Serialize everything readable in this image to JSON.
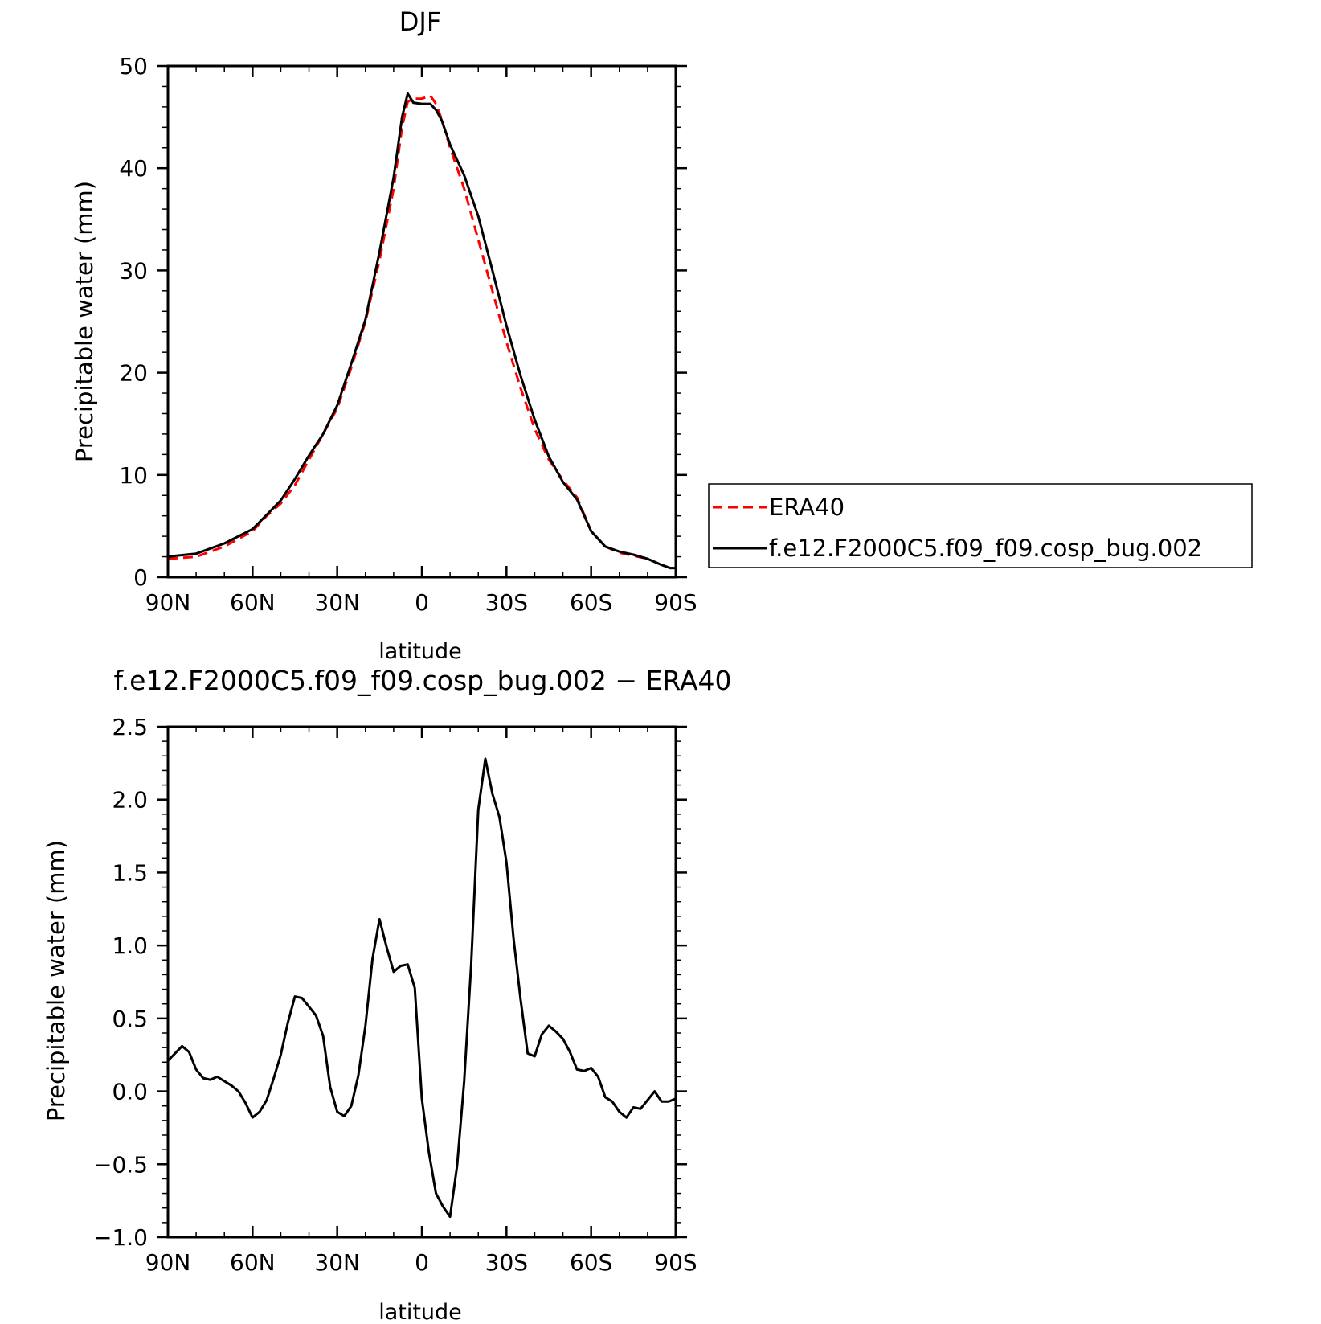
{
  "colors": {
    "era40": "#ff0000",
    "model": "#000000",
    "axis": "#000000",
    "background": "#ffffff"
  },
  "chart_data": [
    {
      "type": "line",
      "title": "DJF",
      "xlabel": "latitude",
      "ylabel": "Precipitable water (mm)",
      "xlim": [
        90,
        -90
      ],
      "ylim": [
        0,
        50
      ],
      "x_ticks": [
        {
          "value": 90,
          "label": "90N"
        },
        {
          "value": 60,
          "label": "60N"
        },
        {
          "value": 30,
          "label": "30N"
        },
        {
          "value": 0,
          "label": "0"
        },
        {
          "value": -30,
          "label": "30S"
        },
        {
          "value": -60,
          "label": "60S"
        },
        {
          "value": -90,
          "label": "90S"
        }
      ],
      "y_ticks": [
        {
          "value": 0,
          "label": "0"
        },
        {
          "value": 10,
          "label": "10"
        },
        {
          "value": 20,
          "label": "20"
        },
        {
          "value": 30,
          "label": "30"
        },
        {
          "value": 40,
          "label": "40"
        },
        {
          "value": 50,
          "label": "50"
        }
      ],
      "grid": false,
      "legend_position": "right",
      "series": [
        {
          "name": "ERA40",
          "color": "#ff0000",
          "dash": "dashed",
          "x": [
            90,
            80,
            70,
            60,
            55,
            50,
            45,
            40,
            35,
            30,
            25,
            20,
            15,
            10,
            7,
            5,
            3,
            0,
            -3,
            -5,
            -7,
            -10,
            -15,
            -20,
            -25,
            -30,
            -35,
            -40,
            -45,
            -50,
            -55,
            -60,
            -65,
            -70,
            -75,
            -80,
            -85,
            -88,
            -90
          ],
          "y": [
            1.8,
            2.0,
            3.0,
            4.5,
            6.0,
            7.2,
            9.0,
            11.5,
            14.0,
            16.5,
            20.5,
            25.0,
            31.0,
            38.0,
            44.0,
            46.5,
            46.8,
            46.8,
            47.1,
            46.3,
            44.8,
            42.0,
            38.0,
            33.0,
            28.0,
            23.0,
            18.5,
            14.5,
            11.5,
            9.5,
            7.8,
            4.5,
            3.0,
            2.4,
            2.1,
            1.8,
            1.2,
            0.9,
            0.9
          ]
        },
        {
          "name": "f.e12.F2000C5.f09_f09.cosp_bug.002",
          "color": "#000000",
          "dash": "solid",
          "x": [
            90,
            87,
            80,
            70,
            60,
            55,
            50,
            45,
            40,
            35,
            30,
            25,
            20,
            15,
            10,
            7,
            5,
            3,
            0,
            -3,
            -5,
            -7,
            -10,
            -15,
            -20,
            -25,
            -30,
            -35,
            -40,
            -45,
            -50,
            -55,
            -60,
            -65,
            -70,
            -75,
            -80,
            -85,
            -88,
            -90
          ],
          "y": [
            2.0,
            2.1,
            2.3,
            3.3,
            4.7,
            6.1,
            7.5,
            9.6,
            11.9,
            14.0,
            16.8,
            20.9,
            25.2,
            31.8,
            39.1,
            45.0,
            47.3,
            46.4,
            46.3,
            46.3,
            45.7,
            44.7,
            42.3,
            39.3,
            35.3,
            30.0,
            24.6,
            19.7,
            15.4,
            11.8,
            9.3,
            7.6,
            4.5,
            3.0,
            2.5,
            2.2,
            1.8,
            1.2,
            0.9,
            0.9
          ]
        }
      ]
    },
    {
      "type": "line",
      "title": "f.e12.F2000C5.f09_f09.cosp_bug.002 − ERA40",
      "xlabel": "latitude",
      "ylabel": "Precipitable water (mm)",
      "xlim": [
        90,
        -90
      ],
      "ylim": [
        -1.0,
        2.5
      ],
      "x_ticks": [
        {
          "value": 90,
          "label": "90N"
        },
        {
          "value": 60,
          "label": "60N"
        },
        {
          "value": 30,
          "label": "30N"
        },
        {
          "value": 0,
          "label": "0"
        },
        {
          "value": -30,
          "label": "30S"
        },
        {
          "value": -60,
          "label": "60S"
        },
        {
          "value": -90,
          "label": "90S"
        }
      ],
      "y_ticks": [
        {
          "value": -1.0,
          "label": "−1.0"
        },
        {
          "value": -0.5,
          "label": "−0.5"
        },
        {
          "value": 0.0,
          "label": "0.0"
        },
        {
          "value": 0.5,
          "label": "0.5"
        },
        {
          "value": 1.0,
          "label": "1.0"
        },
        {
          "value": 1.5,
          "label": "1.5"
        },
        {
          "value": 2.0,
          "label": "2.0"
        },
        {
          "value": 2.5,
          "label": "2.5"
        }
      ],
      "grid": false,
      "series": [
        {
          "color": "#000000",
          "dash": "solid",
          "x": [
            90,
            87.5,
            85,
            82.5,
            80,
            77.5,
            75,
            72.5,
            70,
            67.5,
            65,
            62.5,
            60,
            57.5,
            55,
            52.5,
            50,
            47.5,
            45,
            42.5,
            40,
            37.5,
            35,
            32.5,
            30,
            27.5,
            25,
            22.5,
            20,
            17.5,
            15,
            12.5,
            10,
            7.5,
            5,
            2.5,
            0,
            -2.5,
            -5,
            -7.5,
            -10,
            -12.5,
            -15,
            -17.5,
            -20,
            -22.5,
            -25,
            -27.5,
            -30,
            -32.5,
            -35,
            -37.5,
            -40,
            -42.5,
            -45,
            -47.5,
            -50,
            -52.5,
            -55,
            -57.5,
            -60,
            -62.5,
            -65,
            -67.5,
            -70,
            -72.5,
            -75,
            -77.5,
            -80,
            -82.5,
            -85,
            -87.5,
            -90
          ],
          "y": [
            0.21,
            0.26,
            0.31,
            0.27,
            0.15,
            0.09,
            0.08,
            0.1,
            0.07,
            0.04,
            0.0,
            -0.08,
            -0.18,
            -0.14,
            -0.06,
            0.09,
            0.25,
            0.47,
            0.65,
            0.64,
            0.58,
            0.52,
            0.38,
            0.03,
            -0.14,
            -0.17,
            -0.1,
            0.11,
            0.45,
            0.91,
            1.18,
            0.99,
            0.82,
            0.86,
            0.87,
            0.71,
            -0.05,
            -0.42,
            -0.7,
            -0.79,
            -0.86,
            -0.51,
            0.07,
            0.87,
            1.93,
            2.28,
            2.04,
            1.88,
            1.57,
            1.05,
            0.63,
            0.26,
            0.24,
            0.39,
            0.45,
            0.41,
            0.36,
            0.27,
            0.15,
            0.14,
            0.16,
            0.1,
            -0.04,
            -0.07,
            -0.14,
            -0.18,
            -0.11,
            -0.12,
            -0.06,
            0.0,
            -0.07,
            -0.07,
            -0.05
          ]
        }
      ]
    }
  ]
}
